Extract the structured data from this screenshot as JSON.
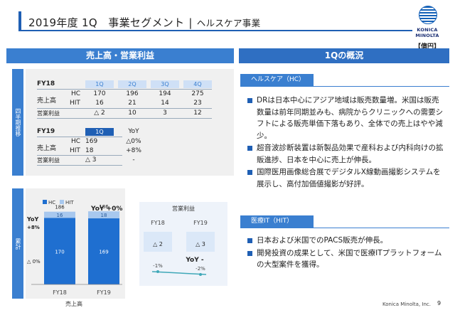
{
  "title": {
    "main": "2019年度 1Q　事業セグメント",
    "sep": "|",
    "sub": "ヘルスケア事業"
  },
  "logo": {
    "text": "KONICA MINOLTA"
  },
  "unit": "【億円】",
  "left_header": "売上高・営業利益",
  "right_header": "1Qの概況",
  "side_labels": {
    "top": "四半期推移",
    "bottom": "累計"
  },
  "fy18": {
    "label": "FY18",
    "quarters": [
      "1Q",
      "2Q",
      "3Q",
      "4Q"
    ],
    "sales_label": "売上高",
    "op_label": "営業利益",
    "hc_label": "HC",
    "hit_label": "HIT",
    "hc": [
      "170",
      "196",
      "194",
      "275"
    ],
    "hit": [
      "16",
      "21",
      "14",
      "23"
    ],
    "op": [
      "△ 2",
      "10",
      "3",
      "12"
    ]
  },
  "fy19": {
    "label": "FY19",
    "quarter": "1Q",
    "yoy_label": "YoY",
    "sales_label": "売上高",
    "op_label": "営業利益",
    "hc_label": "HC",
    "hit_label": "HIT",
    "hc": "169",
    "hit": "18",
    "op": "△ 3",
    "hc_yoy": "△0%",
    "hit_yoy": "+8%",
    "op_yoy": "-"
  },
  "chart_sales": {
    "legend": [
      "HC",
      "HIT"
    ],
    "yoy_title": "YoY +0%",
    "yoy_label": "YoY",
    "hit_yoy": "+8%",
    "hc_yoy": "△ 0%",
    "xlabel": "売上高",
    "colors": {
      "hc": "#1f6fd0",
      "hit": "#a8c8ee"
    }
  },
  "chart_op": {
    "title": "営業利益",
    "yoy": "YoY -",
    "yoy_pct": "-2%",
    "fy18_pct": "-1%"
  },
  "chart_data": [
    {
      "type": "bar",
      "categories": [
        "FY18",
        "FY19"
      ],
      "series": [
        {
          "name": "HC",
          "values": [
            170,
            169
          ]
        },
        {
          "name": "HIT",
          "values": [
            16,
            18
          ]
        }
      ],
      "totals": [
        "186",
        "186"
      ],
      "xlabel": "売上高",
      "stacked": true
    },
    {
      "type": "line",
      "title": "営業利益",
      "categories": [
        "FY18",
        "FY19"
      ],
      "values": [
        -2,
        -3
      ],
      "labels": [
        "△ 2",
        "△ 3"
      ],
      "pct_labels": [
        "-1%",
        "-2%"
      ]
    }
  ],
  "tags": {
    "hc": "ヘルスケア（HC）",
    "hit": "医療IT（HIT）"
  },
  "hc_bullets": [
    "DRは日本中心にアジア地域は販売数量増。米国は販売数量は前年同期並みも、病院からクリニックへの需要シフトによる販売単価下落もあり、全体での売上はやや減少。",
    "超音波診断装置は新製品効果で産科および内科向けの拡販進捗、日本を中心に売上が伸長。",
    "国際医用画像総合展でデジタルX線動画撮影システムを展示し、高付加価値撮影が好評。"
  ],
  "hit_bullets": [
    "日本および米国でのPACS販売が伸長。",
    "開発投資の成果として、米国で医療ITプラットフォームの大型案件を獲得。"
  ],
  "footer": "Konica Minolta, Inc.",
  "page": "9"
}
